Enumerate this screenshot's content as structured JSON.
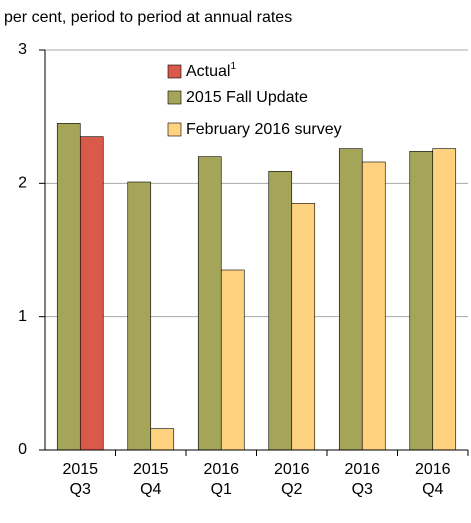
{
  "chart_data": {
    "type": "bar",
    "y_label": "per cent, period to period at annual rates",
    "categories": [
      [
        "2015",
        "Q3"
      ],
      [
        "2015",
        "Q4"
      ],
      [
        "2016",
        "Q1"
      ],
      [
        "2016",
        "Q2"
      ],
      [
        "2016",
        "Q3"
      ],
      [
        "2016",
        "Q4"
      ]
    ],
    "series": [
      {
        "name": "Actual",
        "footnote": "1",
        "color": "#d9594a",
        "slot": 1,
        "values": [
          2.35,
          null,
          null,
          null,
          null,
          null
        ]
      },
      {
        "name": "2015 Fall Update",
        "color": "#a5a55a",
        "slot": 0,
        "values": [
          2.45,
          2.01,
          2.2,
          2.09,
          2.26,
          2.24
        ]
      },
      {
        "name": "February 2016 survey",
        "color": "#ffd27f",
        "slot": 1,
        "values": [
          null,
          0.16,
          1.35,
          1.85,
          2.16,
          2.26
        ]
      }
    ],
    "ylim": [
      0,
      3
    ],
    "yticks": [
      0,
      1,
      2,
      3
    ],
    "grid": true
  }
}
